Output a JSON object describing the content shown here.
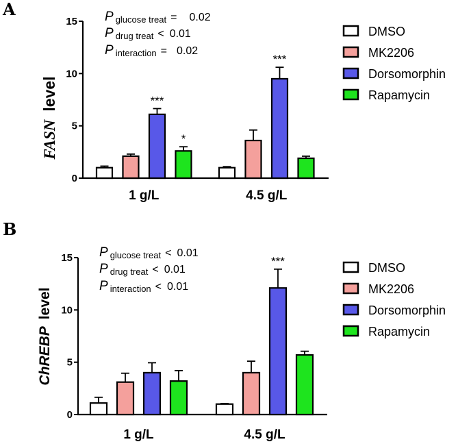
{
  "panels": [
    {
      "letter": "A",
      "ylabel_italic": "FASN",
      "ylabel_rest": "level",
      "pvalues": [
        {
          "p": "P",
          "sub": "glucose treat",
          "op": "=",
          "val": "0.02"
        },
        {
          "p": "P",
          "sub": "drug treat",
          "op": "<",
          "val": "0.01"
        },
        {
          "p": "P",
          "sub": "interaction",
          "op": "=",
          "val": "0.02"
        }
      ]
    },
    {
      "letter": "B",
      "ylabel_italic": "ChREBP",
      "ylabel_rest": "level",
      "pvalues": [
        {
          "p": "P",
          "sub": "glucose treat",
          "op": "<",
          "val": "0.01"
        },
        {
          "p": "P",
          "sub": "drug treat",
          "op": "<",
          "val": "0.01"
        },
        {
          "p": "P",
          "sub": "interaction",
          "op": "<",
          "val": "0.01"
        }
      ]
    }
  ],
  "legend": [
    {
      "name": "DMSO",
      "color": "#ffffff"
    },
    {
      "name": "MK2206",
      "color": "#f4a09c"
    },
    {
      "name": "Dorsomorphin",
      "color": "#5858e8"
    },
    {
      "name": "Rapamycin",
      "color": "#1ee41e"
    }
  ],
  "chart_data": [
    {
      "type": "bar",
      "categories": [
        "1 g/L",
        "4.5 g/L"
      ],
      "xlabel": "",
      "ylabel": "FASN level",
      "ylim": [
        0,
        15
      ],
      "yticks": [
        "0",
        "5",
        "10",
        "15"
      ],
      "series": [
        {
          "name": "DMSO",
          "values": [
            1.0,
            1.0
          ],
          "errors": [
            0.15,
            0.1
          ],
          "significance": [
            "",
            ""
          ]
        },
        {
          "name": "MK2206",
          "values": [
            2.1,
            3.6
          ],
          "errors": [
            0.2,
            1.0
          ],
          "significance": [
            "",
            ""
          ]
        },
        {
          "name": "Dorsomorphin",
          "values": [
            6.1,
            9.5
          ],
          "errors": [
            0.55,
            1.1
          ],
          "significance": [
            "***",
            "***"
          ]
        },
        {
          "name": "Rapamycin",
          "values": [
            2.6,
            1.9
          ],
          "errors": [
            0.4,
            0.2
          ],
          "significance": [
            "*",
            ""
          ]
        }
      ]
    },
    {
      "type": "bar",
      "categories": [
        "1 g/L",
        "4.5 g/L"
      ],
      "xlabel": "",
      "ylabel": "ChREBP level",
      "ylim": [
        0,
        15
      ],
      "yticks": [
        "0",
        "5",
        "10",
        "15"
      ],
      "series": [
        {
          "name": "DMSO",
          "values": [
            1.1,
            1.0
          ],
          "errors": [
            0.55,
            0.05
          ],
          "significance": [
            "",
            ""
          ]
        },
        {
          "name": "MK2206",
          "values": [
            3.1,
            4.0
          ],
          "errors": [
            0.85,
            1.1
          ],
          "significance": [
            "",
            ""
          ]
        },
        {
          "name": "Dorsomorphin",
          "values": [
            4.0,
            12.1
          ],
          "errors": [
            0.95,
            1.8
          ],
          "significance": [
            "",
            "***"
          ]
        },
        {
          "name": "Rapamycin",
          "values": [
            3.2,
            5.7
          ],
          "errors": [
            1.0,
            0.35
          ],
          "significance": [
            "",
            ""
          ]
        }
      ]
    }
  ]
}
